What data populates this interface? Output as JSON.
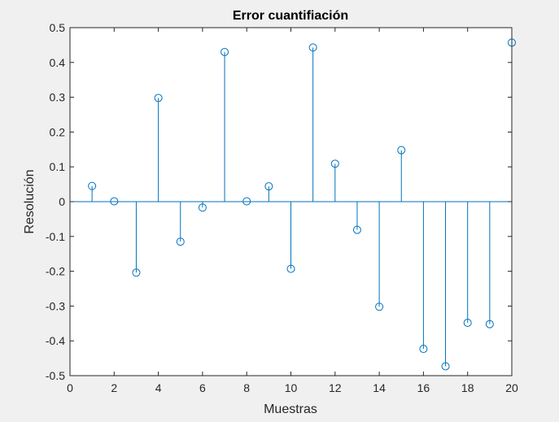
{
  "chart_data": {
    "type": "stem",
    "title": "Error cuantifiación",
    "xlabel": "Muestras",
    "ylabel": "Resolución",
    "xlim": [
      0,
      20
    ],
    "ylim": [
      -0.5,
      0.5
    ],
    "grid": false,
    "x_ticks": [
      "0",
      "2",
      "4",
      "6",
      "8",
      "10",
      "12",
      "14",
      "16",
      "18",
      "20"
    ],
    "y_ticks": [
      "-0.5",
      "-0.4",
      "-0.3",
      "-0.2",
      "-0.1",
      "0",
      "0.1",
      "0.2",
      "0.3",
      "0.4",
      "0.5"
    ],
    "series_color": "#0072bd",
    "x": [
      1,
      2,
      3,
      4,
      5,
      6,
      7,
      8,
      9,
      10,
      11,
      12,
      13,
      14,
      15,
      16,
      17,
      18,
      19,
      20
    ],
    "values": [
      0.045,
      0.001,
      -0.204,
      0.298,
      -0.115,
      -0.017,
      0.43,
      0.001,
      0.044,
      -0.193,
      0.443,
      0.109,
      -0.081,
      -0.302,
      0.148,
      -0.423,
      -0.473,
      -0.348,
      -0.352,
      0.457
    ]
  }
}
